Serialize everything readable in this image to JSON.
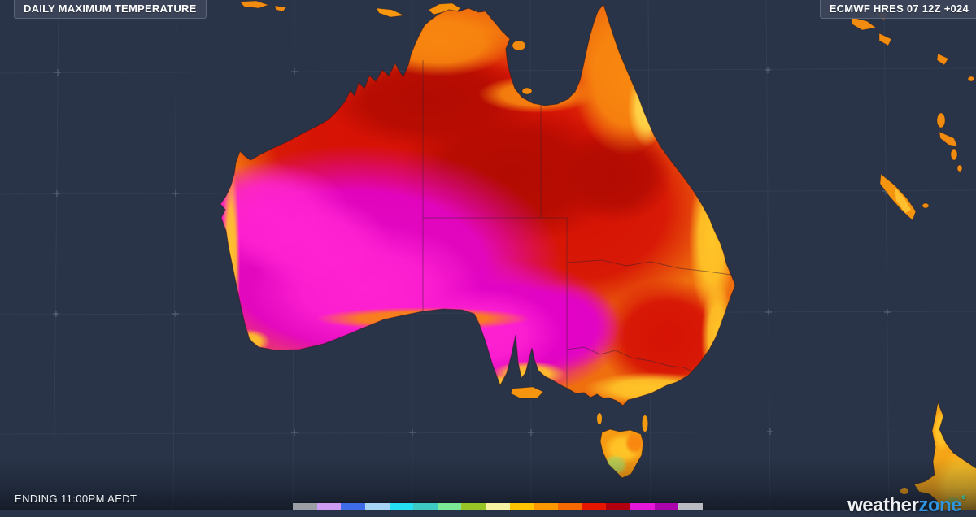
{
  "header": {
    "title": "DAILY MAXIMUM TEMPERATURE",
    "model_info": "ECMWF HRES 07 12Z +024"
  },
  "footer": {
    "ending_label": "ENDING 11:00PM AEDT"
  },
  "brand": {
    "name_light": "weather",
    "name_accent": "zone",
    "degree": "°",
    "accent_color": "#2f95e0",
    "degree_color": "#1fc3b0"
  },
  "legend": {
    "description": "temperature-color-scale",
    "swatches": [
      "#9c9ea6",
      "#cf9cf4",
      "#3f6ce8",
      "#a6d4f2",
      "#25dff2",
      "#3ec9c3",
      "#7ce794",
      "#97c526",
      "#f8f3a2",
      "#fec400",
      "#fb9800",
      "#f66800",
      "#e81500",
      "#b2000f",
      "#e617d8",
      "#ad03ad",
      "#babac2"
    ]
  },
  "map": {
    "ocean_color": "#293448",
    "graticule_color": "#4a5871",
    "palette": {
      "coast_orange": "#ef6e0e",
      "hot_red": "#d61205",
      "very_hot_dark_red": "#b20b02",
      "extreme_magenta": "#e203c6",
      "peak_pink": "#ff22d2",
      "mild_gold": "#ffc528",
      "cool_green": "#b7cf55"
    }
  }
}
